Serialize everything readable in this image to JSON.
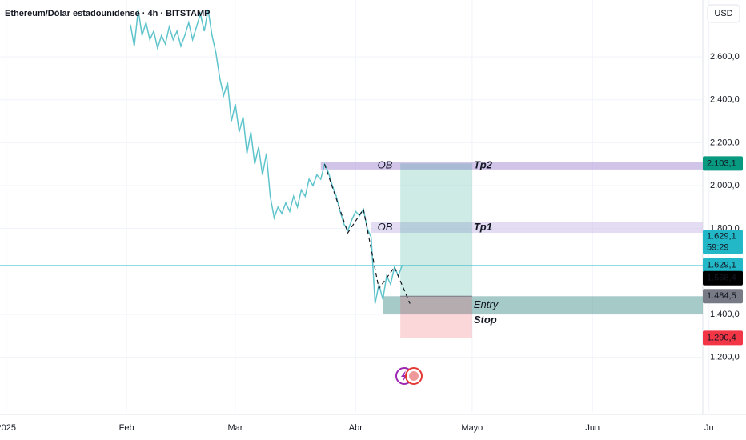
{
  "chart_data": {
    "type": "line",
    "title": "Ethereum/Dólar estadounidense · 4h · BITSTAMP",
    "currency": "USD",
    "x": [
      32,
      33,
      34,
      35,
      36,
      37,
      38,
      39,
      40,
      41,
      42,
      43,
      44,
      45,
      46,
      47,
      48,
      49,
      50,
      51,
      52,
      53,
      54,
      55,
      56,
      57,
      58,
      59,
      60,
      61,
      62,
      63,
      64,
      65,
      66,
      67,
      68,
      69,
      70,
      71,
      72,
      73,
      74,
      75,
      76,
      77,
      78,
      79,
      80,
      81,
      82,
      83,
      84,
      85,
      86,
      87,
      88,
      89,
      90,
      91,
      92,
      93,
      94,
      95,
      96,
      97,
      98,
      99,
      100,
      101,
      102
    ],
    "series": [
      {
        "color": "#5fc4cc",
        "values": [
          2750,
          2650,
          2820,
          2700,
          2760,
          2680,
          2720,
          2640,
          2700,
          2660,
          2740,
          2680,
          2720,
          2650,
          2700,
          2760,
          2680,
          2740,
          2800,
          2720,
          2820,
          2700,
          2620,
          2500,
          2420,
          2480,
          2300,
          2380,
          2250,
          2320,
          2150,
          2250,
          2100,
          2180,
          2050,
          2150,
          1950,
          1850,
          1900,
          1870,
          1920,
          1880,
          1950,
          1900,
          1980,
          1950,
          2030,
          2000,
          2050,
          2030,
          2100,
          2060,
          2000,
          1950,
          1880,
          1820,
          1790,
          1840,
          1880,
          1860,
          1890,
          1800,
          1760,
          1450,
          1540,
          1470,
          1580,
          1540,
          1620,
          1580,
          1629.1
        ]
      }
    ],
    "xlim": [
      -1.6,
      179.4
    ],
    "xticks": [
      {
        "value": 0,
        "label": "2025"
      },
      {
        "value": 31,
        "label": "Feb"
      },
      {
        "value": 59,
        "label": "Mar"
      },
      {
        "value": 90,
        "label": "Abr"
      },
      {
        "value": 120,
        "label": "Mayo"
      },
      {
        "value": 151,
        "label": "Jun"
      },
      {
        "value": 181,
        "label": "Ju"
      }
    ],
    "ylim": [
      945,
      2865
    ],
    "yticks": [
      {
        "value": 2600,
        "label": "2.600,0"
      },
      {
        "value": 2400,
        "label": "2.400,0"
      },
      {
        "value": 2200,
        "label": "2.200,0"
      },
      {
        "value": 2000,
        "label": "2.000,0"
      },
      {
        "value": 1800,
        "label": "1.800,0"
      },
      {
        "value": 1400,
        "label": "1.400,0"
      },
      {
        "value": 1200,
        "label": "1.200,0"
      }
    ],
    "zones": [
      {
        "label": "OB",
        "target": "Tp2",
        "start": 81,
        "top": 2110,
        "bottom": 2075,
        "color": "#b39ddb"
      },
      {
        "label": "OB",
        "target": "Tp1",
        "start": 94,
        "top": 1830,
        "bottom": 1780,
        "color": "#d1c4e9"
      }
    ],
    "entry_zone": {
      "start": 97,
      "top": 1484.5,
      "bottom": 1400,
      "color": "#5d9e9a"
    },
    "position": {
      "start": 101.5,
      "end": 120,
      "entry": 1484.5,
      "target": 2103.1,
      "stop": 1290.4,
      "entry_label": "Entry",
      "stop_label": "Stop"
    },
    "projection": {
      "x": [
        82,
        88,
        92,
        96,
        100,
        104
      ],
      "values": [
        2100,
        1780,
        1890,
        1520,
        1620,
        1450
      ]
    },
    "last_price": {
      "value": 1629.1,
      "label": "1.629,1",
      "countdown": "59:29"
    },
    "price_tags": [
      {
        "value": 2103.1,
        "label": "2.103,1",
        "color": "#089981"
      },
      {
        "value": 1629.1,
        "label": "1.629,1",
        "color": "#22b8c8"
      },
      {
        "value": 1568.4,
        "label": "1.568,4",
        "color": "#000000"
      },
      {
        "value": 1484.5,
        "label": "1.484,5",
        "color": "#787b86"
      },
      {
        "value": 1290.4,
        "label": "1.290,4",
        "color": "#f23645"
      }
    ]
  }
}
